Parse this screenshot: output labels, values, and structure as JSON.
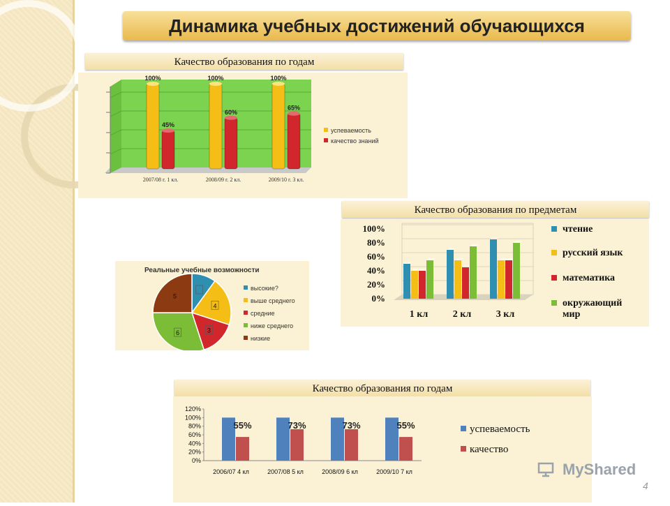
{
  "slide_title": "Динамика учебных достижений обучающихся",
  "page_number": "4",
  "watermark": {
    "text": "MyShared"
  },
  "colors": {
    "green_bg": "#7bd34f",
    "yellow": "#f5be16",
    "red": "#d0262c",
    "teal": "#2f8fb0",
    "olive": "#7cbd38",
    "blue": "#4f81bd",
    "rose": "#c0504d"
  },
  "chart_data": [
    {
      "id": "quality_by_year_cylinders",
      "type": "bar",
      "title": "Качество образования по годам",
      "categories": [
        "2007/08 г. 1 кл.",
        "2008/09 г. 2 кл.",
        "2009/10 г. 3 кл."
      ],
      "series": [
        {
          "name": "успеваемость",
          "values": [
            100,
            100,
            100
          ],
          "labels": [
            "100%",
            "100%",
            "100%"
          ]
        },
        {
          "name": "качество знаний",
          "values": [
            45,
            60,
            65
          ],
          "labels": [
            "45%",
            "60%",
            "65%"
          ]
        }
      ],
      "ylim": [
        0,
        100
      ],
      "legend": "right"
    },
    {
      "id": "quality_by_subject",
      "type": "bar",
      "title": "Качество образования по предметам",
      "categories": [
        "1 кл",
        "2 кл",
        "3 кл"
      ],
      "yticks": [
        "100%",
        "80%",
        "60%",
        "40%",
        "20%",
        "0%"
      ],
      "series": [
        {
          "name": "чтение",
          "values": [
            50,
            70,
            85
          ]
        },
        {
          "name": "русский язык",
          "values": [
            40,
            55,
            55
          ]
        },
        {
          "name": "математика",
          "values": [
            40,
            45,
            55
          ]
        },
        {
          "name": "окружающий мир",
          "values": [
            55,
            75,
            80
          ]
        }
      ],
      "ylim": [
        0,
        100
      ],
      "legend": "right"
    },
    {
      "id": "real_learning_abilities",
      "type": "pie",
      "title": "Реальные учебные возможности",
      "slices": [
        {
          "name": "высокие?",
          "value": 10,
          "label": ""
        },
        {
          "name": "выше среднего",
          "value": 20,
          "label": "4"
        },
        {
          "name": "средние",
          "value": 15,
          "label": "3"
        },
        {
          "name": "ниже среднего",
          "value": 30,
          "label": "6"
        },
        {
          "name": "низкие",
          "value": 25,
          "label": "5"
        }
      ],
      "legend": "right"
    },
    {
      "id": "quality_by_year_flat",
      "type": "bar",
      "title": "Качество образования по годам",
      "categories": [
        "2006/07 4 кл",
        "2007/08 5 кл",
        "2008/09 6 кл",
        "2009/10 7 кл"
      ],
      "yticks": [
        "120%",
        "100%",
        "80%",
        "60%",
        "40%",
        "20%",
        "0%"
      ],
      "series": [
        {
          "name": "успеваемость",
          "values": [
            100,
            100,
            100,
            100
          ]
        },
        {
          "name": "качество",
          "values": [
            55,
            73,
            73,
            55
          ],
          "labels": [
            "55%",
            "73%",
            "73%",
            "55%"
          ]
        }
      ],
      "ylim": [
        0,
        120
      ],
      "legend": "right"
    }
  ]
}
